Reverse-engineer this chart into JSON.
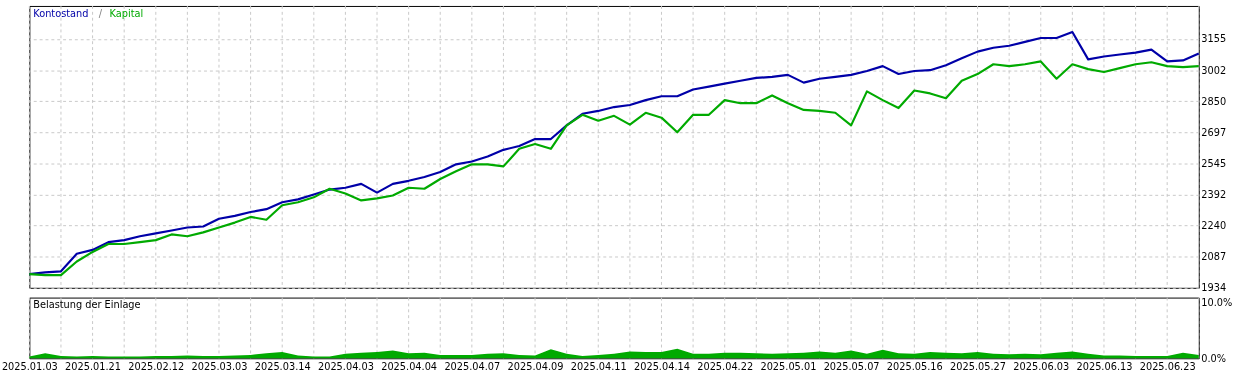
{
  "chart_data": [
    {
      "type": "line",
      "legend": "top left",
      "annotations": [
        "/"
      ],
      "grid": true,
      "tick_labels": "y",
      "line_style": "solid",
      "marker": "none",
      "categories": [
        "2025.01.03",
        null,
        null,
        null,
        "2025.01.21",
        null,
        null,
        null,
        "2025.02.12",
        null,
        null,
        null,
        "2025.03.03",
        null,
        null,
        null,
        "2025.03.14",
        null,
        null,
        null,
        "2025.04.03",
        null,
        null,
        null,
        "2025.04.04",
        null,
        null,
        null,
        "2025.04.07",
        null,
        null,
        null,
        "2025.04.09",
        null,
        null,
        null,
        "2025.04.11",
        null,
        null,
        null,
        "2025.04.14",
        null,
        null,
        null,
        "2025.04.22",
        null,
        null,
        null,
        "2025.05.01",
        null,
        null,
        null,
        "2025.05.07",
        null,
        null,
        null,
        "2025.05.16",
        null,
        null,
        null,
        "2025.05.27",
        null,
        null,
        null,
        "2025.06.03",
        null,
        null,
        null,
        "2025.06.13",
        null,
        null,
        null,
        "2025.06.23",
        null,
        null
      ],
      "ylim": [
        1934,
        3317
      ],
      "yticks": [
        1934,
        2087,
        2240,
        2392,
        2545,
        2697,
        2850,
        3002,
        3155
      ],
      "series": [
        {
          "name": "Kontostand",
          "color": "#0000a8",
          "values": [
            2001,
            2010,
            2015,
            2101,
            2120,
            2158,
            2168,
            2187,
            2201,
            2215,
            2230,
            2235,
            2273,
            2287,
            2306,
            2320,
            2354,
            2368,
            2392,
            2416,
            2425,
            2444,
            2401,
            2444,
            2459,
            2478,
            2502,
            2540,
            2554,
            2578,
            2611,
            2630,
            2664,
            2664,
            2731,
            2788,
            2802,
            2821,
            2831,
            2855,
            2874,
            2874,
            2907,
            2921,
            2936,
            2950,
            2964,
            2969,
            2979,
            2941,
            2960,
            2969,
            2979,
            2998,
            3022,
            2983,
            2998,
            3002,
            3026,
            3060,
            3093,
            3112,
            3122,
            3141,
            3160,
            3160,
            3189,
            3055,
            3069,
            3079,
            3088,
            3103,
            3045,
            3050,
            3084
          ]
        },
        {
          "name": "Kapital",
          "color": "#00aa00",
          "values": [
            2001,
            1996,
            1996,
            2063,
            2110,
            2149,
            2149,
            2158,
            2168,
            2196,
            2187,
            2206,
            2230,
            2254,
            2282,
            2268,
            2339,
            2354,
            2378,
            2420,
            2397,
            2363,
            2373,
            2387,
            2425,
            2420,
            2468,
            2506,
            2540,
            2540,
            2530,
            2616,
            2640,
            2616,
            2731,
            2783,
            2754,
            2778,
            2735,
            2793,
            2769,
            2697,
            2783,
            2783,
            2855,
            2840,
            2840,
            2878,
            2840,
            2807,
            2802,
            2793,
            2731,
            2898,
            2855,
            2816,
            2902,
            2888,
            2864,
            2950,
            2983,
            3031,
            3022,
            3031,
            3045,
            2960,
            3031,
            3007,
            2993,
            3012,
            3031,
            3041,
            3022,
            3017,
            3022
          ]
        }
      ]
    },
    {
      "type": "area",
      "title": "Belastung der Einlage",
      "grid": "x",
      "categories": [
        "2025.01.03",
        null,
        null,
        null,
        "2025.01.21",
        null,
        null,
        null,
        "2025.02.12",
        null,
        null,
        null,
        "2025.03.03",
        null,
        null,
        null,
        "2025.03.14",
        null,
        null,
        null,
        "2025.04.03",
        null,
        null,
        null,
        "2025.04.04",
        null,
        null,
        null,
        "2025.04.07",
        null,
        null,
        null,
        "2025.04.09",
        null,
        null,
        null,
        "2025.04.11",
        null,
        null,
        null,
        "2025.04.14",
        null,
        null,
        null,
        "2025.04.22",
        null,
        null,
        null,
        "2025.05.01",
        null,
        null,
        null,
        "2025.05.07",
        null,
        null,
        null,
        "2025.05.16",
        null,
        null,
        null,
        "2025.05.27",
        null,
        null,
        null,
        "2025.06.03",
        null,
        null,
        null,
        "2025.06.13",
        null,
        null,
        null,
        "2025.06.23",
        null,
        null
      ],
      "ylim": [
        0,
        10.8
      ],
      "yticks": [
        {
          "value": 0,
          "label": "0.0%"
        },
        {
          "value": 10,
          "label": "10.0%"
        }
      ],
      "series": [
        {
          "color": "#00aa00",
          "values": [
            0.3,
            0.9,
            0.4,
            0.3,
            0.4,
            0.3,
            0.3,
            0.3,
            0.4,
            0.4,
            0.5,
            0.4,
            0.4,
            0.5,
            0.6,
            0.9,
            1.1,
            0.5,
            0.3,
            0.3,
            0.8,
            1.0,
            1.1,
            1.4,
            0.9,
            1.0,
            0.6,
            0.6,
            0.6,
            0.8,
            0.9,
            0.6,
            0.5,
            1.6,
            0.8,
            0.4,
            0.6,
            0.8,
            1.2,
            1.1,
            1.1,
            1.7,
            0.8,
            0.8,
            1.0,
            1.0,
            0.9,
            0.8,
            0.9,
            1.0,
            1.2,
            1.0,
            1.4,
            0.8,
            1.5,
            0.9,
            0.8,
            1.1,
            1.0,
            0.9,
            1.1,
            0.8,
            0.7,
            0.8,
            0.7,
            1.0,
            1.2,
            0.8,
            0.5,
            0.5,
            0.4,
            0.4,
            0.4,
            1.0,
            0.6
          ]
        }
      ]
    }
  ]
}
